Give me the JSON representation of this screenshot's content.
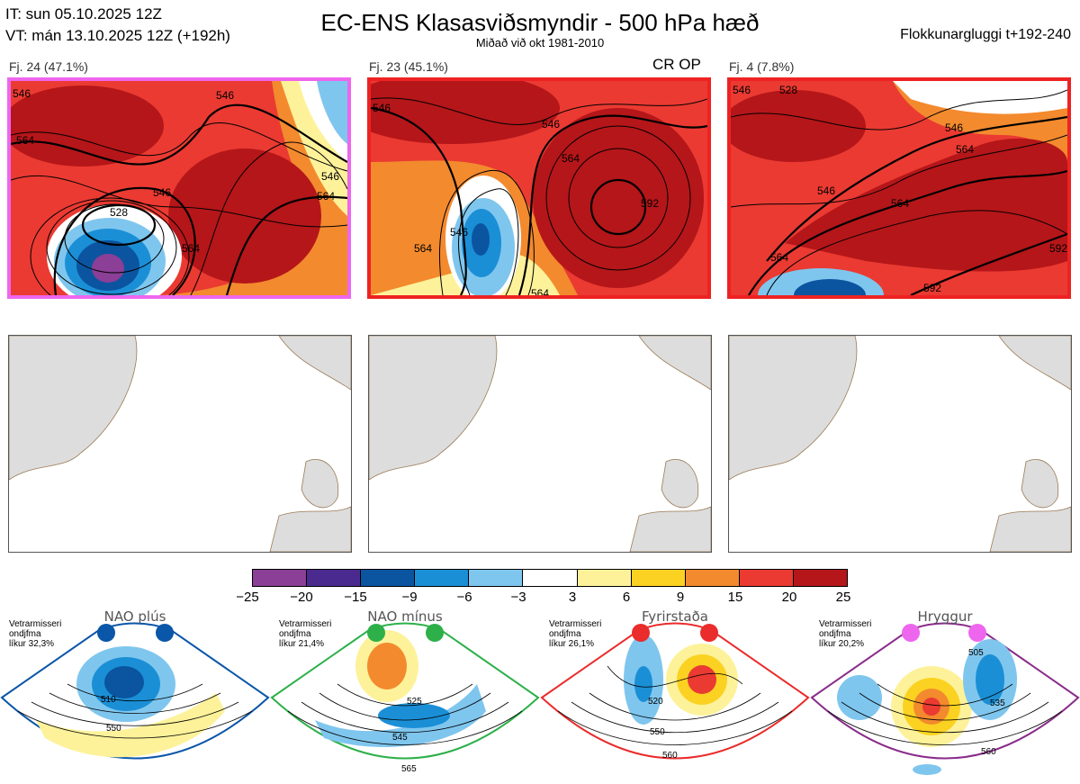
{
  "header": {
    "initial_time": "IT: sun 05.10.2025 12Z",
    "valid_time": "VT: mán 13.10.2025 12Z  (+192h)",
    "title": "EC-ENS Klasasviðsmyndir - 500 hPa hæð",
    "subtitle": "Miðað við okt 1981-2010",
    "window": "Flokkunargluggi t+192-240"
  },
  "clusters": [
    {
      "label": "Fj. 24 (47.1%)",
      "frame_color": "#ee66ee",
      "contours": [
        "546",
        "564",
        "528",
        "546",
        "564",
        "564",
        "546",
        "546"
      ]
    },
    {
      "label": "Fj. 23 (45.1%)",
      "frame_color": "#ee2222",
      "extra": "CR OP",
      "contours": [
        "546",
        "564",
        "546",
        "564",
        "546",
        "564",
        "592"
      ]
    },
    {
      "label": "Fj. 4 (7.8%)",
      "frame_color": "#ee2222",
      "contours": [
        "528",
        "546",
        "546",
        "564",
        "564",
        "546",
        "564",
        "592",
        "592"
      ]
    }
  ],
  "colorbar": {
    "ticks": [
      "−25",
      "−20",
      "−15",
      "−9",
      "−6",
      "−3",
      "3",
      "6",
      "9",
      "15",
      "20",
      "25"
    ],
    "colors": [
      "#8b3f96",
      "#4b2a8f",
      "#0b54a0",
      "#1b8fd6",
      "#7fc6ee",
      "#ffffff",
      "#fdf29a",
      "#fbd221",
      "#f38a2e",
      "#ea3a32",
      "#b51619"
    ]
  },
  "regimes": [
    {
      "name": "NAO plús",
      "info": [
        "Vetrarmisseri",
        "ondjfma",
        "líkur 32,3%"
      ],
      "dot_color": "#0a56a8",
      "frame_color": "#0a56a8",
      "labels": [
        "510",
        "550"
      ]
    },
    {
      "name": "NAO mínus",
      "info": [
        "Vetrarmisseri",
        "ondjfma",
        "líkur 21,4%"
      ],
      "dot_color": "#2db04a",
      "frame_color": "#2db04a",
      "labels": [
        "525",
        "545",
        "565"
      ]
    },
    {
      "name": "Fyrirstaða",
      "info": [
        "Vetrarmisseri",
        "ondjfma",
        "líkur 26,1%"
      ],
      "dot_color": "#ea2c2c",
      "frame_color": "#ea2c2c",
      "labels": [
        "520",
        "550",
        "560"
      ]
    },
    {
      "name": "Hryggur",
      "info": [
        "Vetrarmisseri",
        "ondjfma",
        "líkur 20,2%"
      ],
      "dot_color": "#ee66ee",
      "frame_color": "#8a2c8a",
      "labels": [
        "505",
        "535",
        "560"
      ]
    }
  ]
}
